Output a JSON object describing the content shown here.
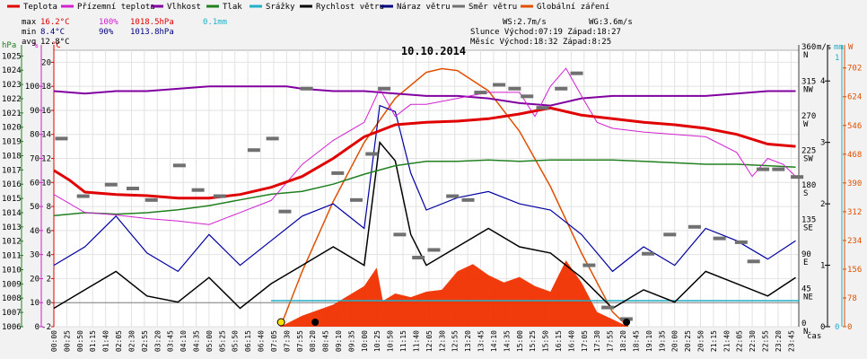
{
  "chart_data": {
    "type": "line",
    "title": "10.10.2014",
    "x_axis_title": "čas",
    "x_ticks": [
      "00:00",
      "00:25",
      "00:50",
      "01:15",
      "01:40",
      "02:05",
      "02:30",
      "02:55",
      "03:20",
      "03:45",
      "04:10",
      "04:35",
      "05:00",
      "05:25",
      "05:50",
      "06:15",
      "06:40",
      "07:05",
      "07:30",
      "07:55",
      "08:20",
      "08:45",
      "09:10",
      "09:35",
      "10:00",
      "10:25",
      "10:50",
      "11:15",
      "11:40",
      "12:05",
      "12:30",
      "12:55",
      "13:20",
      "13:45",
      "14:10",
      "14:35",
      "15:00",
      "15:25",
      "15:50",
      "16:15",
      "16:40",
      "17:05",
      "17:30",
      "17:55",
      "18:20",
      "18:45",
      "19:10",
      "19:35",
      "20:00",
      "20:25",
      "20:50",
      "21:15",
      "21:40",
      "22:05",
      "22:30",
      "22:55",
      "23:20",
      "23:45"
    ],
    "legend": [
      {
        "label": "Teplota",
        "color": "#e00000"
      },
      {
        "label": "Přízemní teplota",
        "color": "#d020d0"
      },
      {
        "label": "Vlhkost",
        "color": "#8000a0"
      },
      {
        "label": "Tlak",
        "color": "#208020"
      },
      {
        "label": "Srážky",
        "color": "#20b0c8"
      },
      {
        "label": "Rychlost větru",
        "color": "#000000"
      },
      {
        "label": "Náraz větru",
        "color": "#000080"
      },
      {
        "label": "Směr větru",
        "color": "#707070"
      },
      {
        "label": "Globální záření",
        "color": "#e05000"
      }
    ],
    "stats": {
      "max_label": "max",
      "max_temp": "16.2°C",
      "max_hum": "100%",
      "max_press": "1018.5hPa",
      "max_rain": "0.1mm",
      "min_label": "min",
      "min_temp": "8.4°C",
      "min_hum": "90%",
      "min_press": "1013.8hPa",
      "avg_label": "avg",
      "avg_temp": "12.8°C"
    },
    "info": {
      "ws": "WS:2.7m/s",
      "wg": "WG:3.6m/s",
      "sun": "Slunce Východ:07:19  Západ:18:27",
      "moon": "Měsíc  Východ:18:32  Západ:8:25"
    },
    "axes": {
      "hpa": {
        "unit": "hPa",
        "color": "#208020",
        "ticks": [
          "1006",
          "1007",
          "1008",
          "1009",
          "1010",
          "1011",
          "1012",
          "1013",
          "1014",
          "1015",
          "1016",
          "1017",
          "1018",
          "1019",
          "1020",
          "1021",
          "1022",
          "1023",
          "1024",
          "1025"
        ]
      },
      "percent": {
        "unit": "%",
        "color": "#d020d0",
        "ticks": [
          "0",
          "10",
          "20",
          "30",
          "40",
          "50",
          "60",
          "70",
          "80",
          "90",
          "100"
        ]
      },
      "celsius": {
        "unit": "°C",
        "color": "#e00000",
        "ticks": [
          "-2",
          "0",
          "2",
          "4",
          "6",
          "8",
          "10",
          "12",
          "14",
          "16",
          "18",
          "20"
        ]
      },
      "direction": {
        "unit": "",
        "color": "#404040",
        "ticks": [
          "0",
          "45",
          "90",
          "135",
          "180",
          "225",
          "270",
          "315",
          "360"
        ],
        "labels": [
          "N",
          "NE",
          "E",
          "SE",
          "S",
          "SW",
          "W",
          "NW",
          "N"
        ]
      },
      "wind": {
        "unit": "m/s",
        "color": "#000000",
        "ticks": [
          "0",
          "1",
          "2",
          "3",
          "4"
        ]
      },
      "rain": {
        "unit": "mm",
        "color": "#20b0c8",
        "ticks": [
          "0",
          "1"
        ]
      },
      "radiation": {
        "unit": "W",
        "color": "#e05000",
        "ticks": [
          "0",
          "78",
          "156",
          "234",
          "312",
          "390",
          "468",
          "546",
          "624",
          "702"
        ]
      }
    },
    "ranges": {
      "temp": [
        -2,
        21
      ],
      "hum": [
        0,
        115
      ],
      "press": [
        1006,
        1025.4
      ],
      "dir": [
        0,
        360
      ],
      "wind": [
        0,
        4.5
      ],
      "rad": [
        0,
        750
      ]
    },
    "series": [
      {
        "name": "Teplota",
        "unit": "°C",
        "x_hours": [
          0,
          0.5,
          1,
          2,
          3,
          4,
          5,
          6,
          7,
          8,
          9,
          10,
          11,
          12,
          13,
          14,
          15,
          16,
          17,
          18,
          19,
          20,
          21,
          22,
          23,
          23.9
        ],
        "values": [
          11,
          10.2,
          9.2,
          9.0,
          8.9,
          8.7,
          8.7,
          9.0,
          9.6,
          10.5,
          12.0,
          13.8,
          14.8,
          15.0,
          15.1,
          15.3,
          15.7,
          16.2,
          15.6,
          15.3,
          15.0,
          14.8,
          14.5,
          14.0,
          13.2,
          13.0
        ]
      },
      {
        "name": "Přízemní teplota",
        "unit": "°C",
        "x_hours": [
          0,
          1,
          2,
          3,
          4,
          5,
          6,
          7,
          8,
          9,
          10,
          10.5,
          11,
          11.5,
          12,
          13,
          14,
          15,
          15.5,
          16,
          16.5,
          17,
          17.5,
          18,
          19,
          20,
          21,
          22,
          22.5,
          23,
          23.5,
          23.9
        ],
        "values": [
          9,
          7.5,
          7.3,
          7.0,
          6.8,
          6.5,
          7.5,
          8.5,
          11.5,
          13.5,
          15.0,
          17.8,
          15.5,
          16.5,
          16.5,
          17.0,
          17.5,
          17.5,
          15.5,
          18.0,
          19.5,
          17.2,
          15.0,
          14.5,
          14.2,
          14.0,
          13.8,
          12.5,
          10.5,
          12.0,
          11.5,
          10.5
        ]
      },
      {
        "name": "Vlhkost",
        "unit": "%",
        "x_hours": [
          0,
          1,
          2,
          3,
          4,
          5,
          6,
          7,
          7.5,
          8,
          9,
          10,
          11,
          12,
          13,
          14,
          15,
          16,
          17,
          18,
          19,
          20,
          21,
          22,
          23,
          23.9
        ],
        "values": [
          98,
          97,
          98,
          98,
          99,
          100,
          100,
          100,
          100,
          99,
          98,
          98,
          97,
          96,
          96,
          95,
          93,
          92,
          95,
          96,
          96,
          96,
          96,
          97,
          98,
          98
        ]
      },
      {
        "name": "Tlak",
        "unit": "hPa",
        "x_hours": [
          0,
          1,
          2,
          3,
          4,
          5,
          6,
          7,
          8,
          9,
          10,
          11,
          12,
          13,
          14,
          15,
          16,
          17,
          18,
          19,
          20,
          21,
          22,
          23,
          23.9
        ],
        "values": [
          1013.8,
          1014.0,
          1013.9,
          1014.0,
          1014.2,
          1014.5,
          1014.9,
          1015.3,
          1015.5,
          1016.0,
          1016.7,
          1017.3,
          1017.6,
          1017.6,
          1017.7,
          1017.6,
          1017.7,
          1017.7,
          1017.7,
          1017.6,
          1017.5,
          1017.4,
          1017.4,
          1017.3,
          1017.2
        ]
      },
      {
        "name": "Srážky",
        "unit": "mm",
        "x_hours": [
          0,
          23.9
        ],
        "values": [
          0,
          0
        ]
      },
      {
        "name": "Rychlost větru",
        "unit": "m/s",
        "x_hours": [
          0,
          1,
          2,
          3,
          4,
          5,
          6,
          7,
          8,
          9,
          10,
          10.5,
          11,
          11.5,
          12,
          13,
          14,
          15,
          16,
          17,
          18,
          19,
          20,
          21,
          22,
          23,
          23.9
        ],
        "values": [
          0.3,
          0.6,
          0.9,
          0.5,
          0.4,
          0.8,
          0.3,
          0.7,
          1.0,
          1.3,
          1.0,
          3.0,
          2.7,
          1.5,
          1.0,
          1.3,
          1.6,
          1.3,
          1.2,
          0.8,
          0.3,
          0.6,
          0.4,
          0.9,
          0.7,
          0.5,
          0.8
        ]
      },
      {
        "name": "Náraz větru",
        "unit": "m/s",
        "x_hours": [
          0,
          1,
          2,
          3,
          4,
          5,
          6,
          7,
          8,
          9,
          10,
          10.5,
          11,
          11.5,
          12,
          13,
          14,
          15,
          16,
          17,
          18,
          19,
          20,
          21,
          22,
          23,
          23.9
        ],
        "values": [
          1.0,
          1.3,
          1.8,
          1.2,
          0.9,
          1.5,
          1.0,
          1.4,
          1.8,
          2.0,
          1.6,
          3.6,
          3.5,
          2.5,
          1.9,
          2.1,
          2.2,
          2.0,
          1.9,
          1.5,
          0.9,
          1.3,
          1.0,
          1.6,
          1.4,
          1.1,
          1.4
        ]
      },
      {
        "name": "Globální záření",
        "unit": "W/m²",
        "x_hours": [
          7.3,
          8,
          9,
          10,
          11,
          12,
          12.5,
          13,
          14,
          15,
          16,
          17,
          18,
          18.5
        ],
        "values": [
          0,
          150,
          340,
          500,
          620,
          690,
          700,
          695,
          640,
          530,
          380,
          200,
          40,
          0
        ]
      }
    ],
    "wind_direction": {
      "x_hours": [
        0.1,
        0.8,
        1.7,
        2.4,
        3.0,
        3.9,
        4.5,
        5.2,
        6.3,
        6.9,
        7.3,
        8.0,
        9.0,
        9.6,
        10.1,
        10.5,
        11.0,
        11.6,
        12.1,
        12.7,
        13.2,
        13.6,
        14.2,
        14.7,
        15.1,
        15.6,
        16.2,
        16.7,
        17.1,
        17.7,
        18.3,
        19.0,
        19.7,
        20.5,
        21.3,
        22.0,
        22.4,
        22.7,
        23.2,
        23.8
      ],
      "values": [
        245,
        170,
        185,
        180,
        165,
        210,
        178,
        170,
        230,
        245,
        150,
        310,
        200,
        165,
        225,
        310,
        120,
        90,
        100,
        170,
        165,
        305,
        315,
        310,
        300,
        285,
        310,
        330,
        80,
        25,
        10,
        95,
        120,
        130,
        115,
        110,
        85,
        205,
        205,
        195
      ]
    },
    "global_radiation_fill": {
      "x_hours": [
        7.3,
        8,
        9,
        10,
        10.4,
        10.6,
        11,
        11.5,
        12,
        12.5,
        13,
        13.5,
        14,
        14.5,
        15,
        15.5,
        16,
        16.5,
        17,
        17.5,
        18,
        18.5
      ],
      "values": [
        0,
        30,
        60,
        110,
        160,
        70,
        90,
        80,
        95,
        100,
        150,
        170,
        140,
        120,
        135,
        110,
        95,
        180,
        120,
        40,
        20,
        0
      ]
    }
  }
}
